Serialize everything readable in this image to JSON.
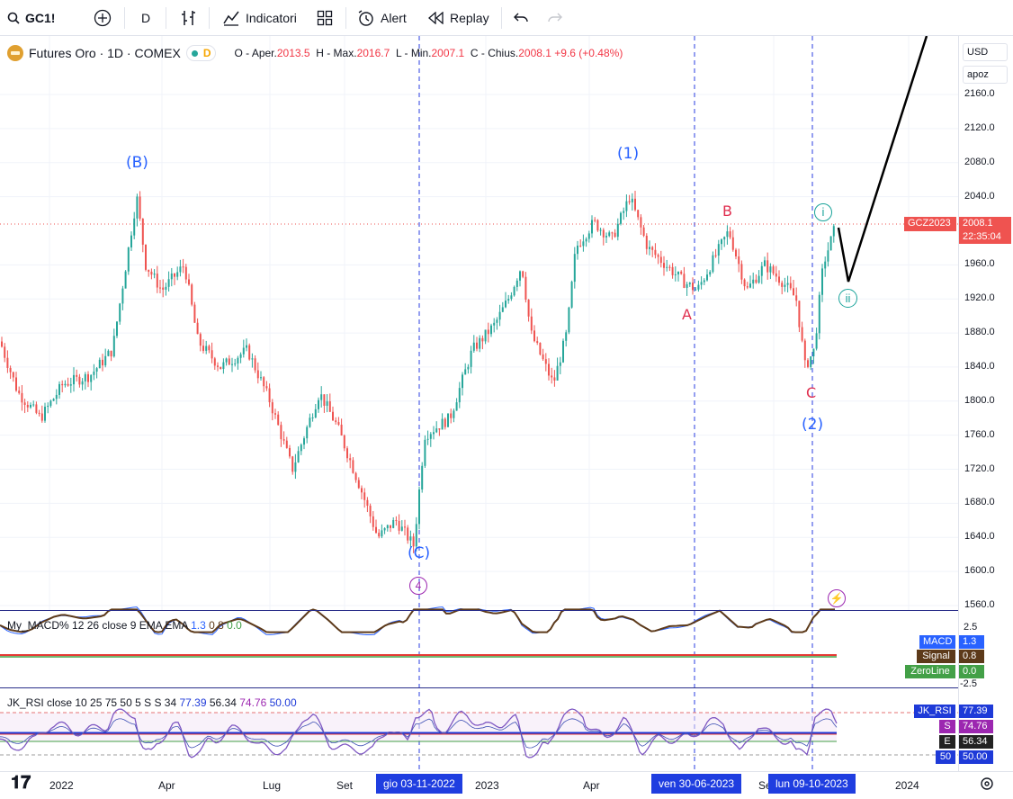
{
  "toolbar": {
    "symbol": "GC1!",
    "interval": "D",
    "indicators_label": "Indicatori",
    "alert_label": "Alert",
    "replay_label": "Replay"
  },
  "legend": {
    "title": "Futures Oro · 1D · COMEX",
    "badge": "D",
    "open_label": "O - Aper.",
    "open_value": "2013.5",
    "high_label": "H - Max.",
    "high_value": "2016.7",
    "low_label": "L - Min.",
    "low_value": "2007.1",
    "close_label": "C - Chius.",
    "close_value": "2008.1",
    "change": "+9.6 (+0.48%)"
  },
  "price_axis": {
    "currency": "USD",
    "mode": "apoz",
    "ticks": [
      "2160.0",
      "2120.0",
      "2080.0",
      "2040.0",
      "1960.0",
      "1920.0",
      "1880.0",
      "1840.0",
      "1800.0",
      "1760.0",
      "1720.0",
      "1680.0",
      "1640.0",
      "1600.0",
      "1560.0"
    ],
    "symbol_tag": "GCZ2023",
    "last_price": "2008.1",
    "countdown": "22:35:04"
  },
  "waves": {
    "B_paren": "(B)",
    "C_paren": "(C)",
    "four": "4",
    "one": "(1)",
    "two": "(2)",
    "A": "A",
    "B": "B",
    "C": "C",
    "i": "i",
    "ii": "ii"
  },
  "macd": {
    "legend_name": "My_MACD%",
    "legend_params": "12 26 close 9 EMA EMA",
    "v1": "1.3",
    "v2": "0.8",
    "v3": "0.0",
    "axis_top": "2.5",
    "axis_bottom": "-2.5",
    "tag_macd": "MACD",
    "tag_macd_val": "1.3",
    "tag_signal": "Signal",
    "tag_signal_val": "0.8",
    "tag_zero": "ZeroLine",
    "tag_zero_val": "0.0"
  },
  "rsi": {
    "legend_name": "JK_RSI",
    "legend_params": "close 10 25 75 50 5 S S 34",
    "v1": "77.39",
    "v2": "56.34",
    "v3": "74.76",
    "v4": "50.00",
    "tag_rsi": "JK_RSI",
    "tag_rsi_val": "77.39",
    "tag_s": "S",
    "tag_s_val": "74.76",
    "tag_e": "E",
    "tag_e_val": "56.34",
    "tag_50": "50",
    "tag_50_val": "50.00"
  },
  "time_axis": {
    "labels": [
      "2022",
      "Apr",
      "Lug",
      "Set",
      "2023",
      "Apr",
      "Se",
      "2024"
    ],
    "marker1": "gio 03-11-2022",
    "marker2": "ven 30-06-2023",
    "marker3": "lun 09-10-2023"
  },
  "colors": {
    "up": "#26a69a",
    "down": "#ef5350",
    "wave_blue": "#2962ff",
    "wave_red": "#e03050",
    "wave_teal": "#1aa39a",
    "wave_purple": "#9c27b0"
  }
}
